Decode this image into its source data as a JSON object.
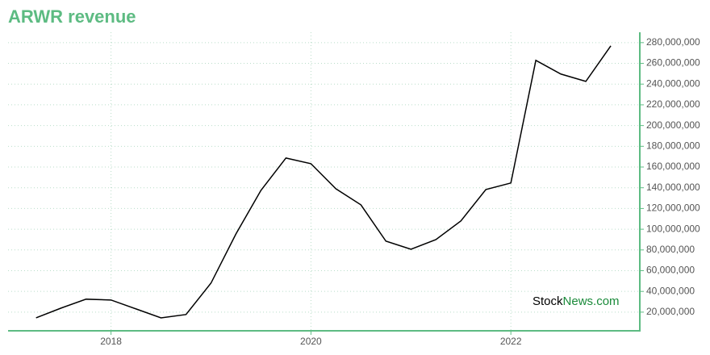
{
  "chart_data": {
    "type": "line",
    "title": "ARWR revenue",
    "x": [
      2017.25,
      2017.5,
      2017.75,
      2018,
      2018.25,
      2018.5,
      2018.75,
      2019,
      2019.25,
      2019.5,
      2019.75,
      2020,
      2020.25,
      2020.5,
      2020.75,
      2021,
      2021.25,
      2021.5,
      2021.75,
      2022,
      2022.25,
      2022.5,
      2022.75,
      2023
    ],
    "series": [
      {
        "name": "ARWR revenue",
        "color": "#000000",
        "values": [
          14500000,
          23900000,
          32500000,
          31700000,
          23100000,
          14500000,
          17700000,
          48000000,
          95500000,
          137500000,
          168700000,
          163200000,
          139000000,
          123500000,
          88500000,
          80700000,
          90000000,
          108000000,
          138300000,
          144600000,
          262900000,
          249700000,
          242600000,
          276900000
        ]
      }
    ],
    "xlim": [
      2016.97,
      2023.29
    ],
    "xticks": [
      2018,
      2020,
      2022
    ],
    "ylim": [
      2000000,
      290000000
    ],
    "yticks": [
      {
        "value": 20000000,
        "label": "20,000,000"
      },
      {
        "value": 40000000,
        "label": "40,000,000"
      },
      {
        "value": 60000000,
        "label": "60,000,000"
      },
      {
        "value": 80000000,
        "label": "80,000,000"
      },
      {
        "value": 100000000,
        "label": "100,000,000"
      },
      {
        "value": 120000000,
        "label": "120,000,000"
      },
      {
        "value": 140000000,
        "label": "140,000,000"
      },
      {
        "value": 160000000,
        "label": "160,000,000"
      },
      {
        "value": 180000000,
        "label": "180,000,000"
      },
      {
        "value": 200000000,
        "label": "200,000,000"
      },
      {
        "value": 220000000,
        "label": "220,000,000"
      },
      {
        "value": 240000000,
        "label": "240,000,000"
      },
      {
        "value": 260000000,
        "label": "260,000,000"
      },
      {
        "value": 280000000,
        "label": "280,000,000"
      }
    ],
    "grid": true,
    "watermark": {
      "brand": "Stock",
      "suffix": "News.com"
    }
  }
}
